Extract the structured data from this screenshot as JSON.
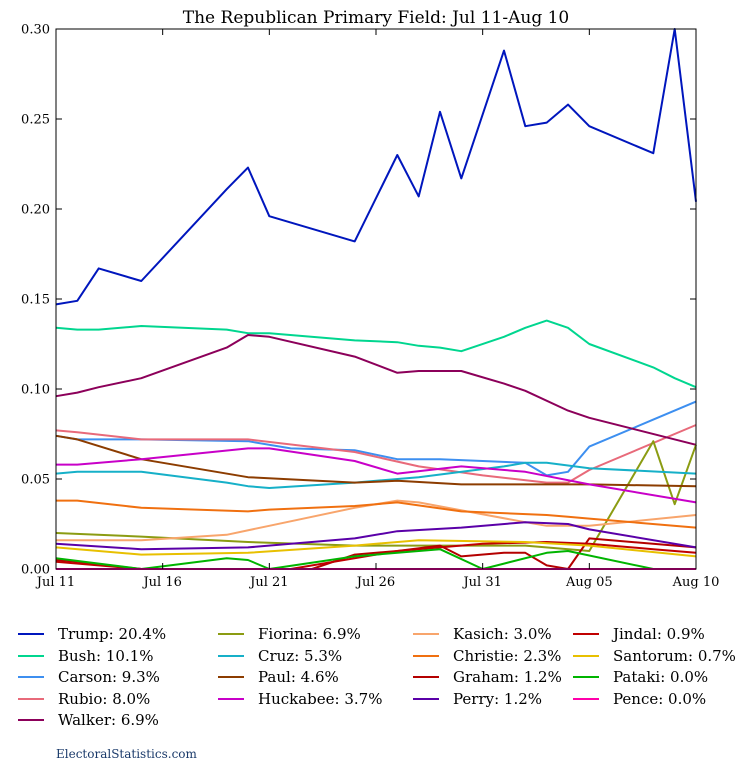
{
  "chart_data": {
    "type": "line",
    "title": "The Republican Primary Field: Jul 11-Aug 10",
    "xlabel": "",
    "ylabel": "",
    "x_range": [
      "2015-07-11",
      "2015-08-10"
    ],
    "ylim": [
      0,
      0.3
    ],
    "x_ticks": [
      "Jul 11",
      "Jul 16",
      "Jul 21",
      "Jul 26",
      "Jul 31",
      "Aug 05",
      "Aug 10"
    ],
    "x_tick_dates": [
      "2015-07-11",
      "2015-07-16",
      "2015-07-21",
      "2015-07-26",
      "2015-07-31",
      "2015-08-05",
      "2015-08-10"
    ],
    "y_ticks": [
      "0.00",
      "0.05",
      "0.10",
      "0.15",
      "0.20",
      "0.25",
      "0.30"
    ],
    "y_tick_values": [
      0,
      0.05,
      0.1,
      0.15,
      0.2,
      0.25,
      0.3
    ],
    "grid": false,
    "legend_position": "bottom",
    "series": [
      {
        "name": "Trump",
        "legend": "Trump: 20.4%",
        "color": "#0016bd",
        "points": [
          [
            "2015-07-11",
            0.147
          ],
          [
            "2015-07-12",
            0.149
          ],
          [
            "2015-07-13",
            0.167
          ],
          [
            "2015-07-15",
            0.16
          ],
          [
            "2015-07-19",
            0.211
          ],
          [
            "2015-07-20",
            0.223
          ],
          [
            "2015-07-21",
            0.196
          ],
          [
            "2015-07-25",
            0.182
          ],
          [
            "2015-07-27",
            0.23
          ],
          [
            "2015-07-28",
            0.207
          ],
          [
            "2015-07-29",
            0.254
          ],
          [
            "2015-07-30",
            0.217
          ],
          [
            "2015-08-01",
            0.288
          ],
          [
            "2015-08-02",
            0.246
          ],
          [
            "2015-08-03",
            0.248
          ],
          [
            "2015-08-04",
            0.258
          ],
          [
            "2015-08-05",
            0.246
          ],
          [
            "2015-08-08",
            0.231
          ],
          [
            "2015-08-09",
            0.3
          ],
          [
            "2015-08-10",
            0.204
          ]
        ]
      },
      {
        "name": "Bush",
        "legend": "Bush: 10.1%",
        "color": "#00d68f",
        "points": [
          [
            "2015-07-11",
            0.134
          ],
          [
            "2015-07-12",
            0.133
          ],
          [
            "2015-07-13",
            0.133
          ],
          [
            "2015-07-15",
            0.135
          ],
          [
            "2015-07-19",
            0.133
          ],
          [
            "2015-07-20",
            0.131
          ],
          [
            "2015-07-21",
            0.131
          ],
          [
            "2015-07-25",
            0.127
          ],
          [
            "2015-07-27",
            0.126
          ],
          [
            "2015-07-28",
            0.124
          ],
          [
            "2015-07-29",
            0.123
          ],
          [
            "2015-07-30",
            0.121
          ],
          [
            "2015-08-01",
            0.129
          ],
          [
            "2015-08-02",
            0.134
          ],
          [
            "2015-08-03",
            0.138
          ],
          [
            "2015-08-04",
            0.134
          ],
          [
            "2015-08-05",
            0.125
          ],
          [
            "2015-08-08",
            0.112
          ],
          [
            "2015-08-09",
            0.106
          ],
          [
            "2015-08-10",
            0.101
          ]
        ]
      },
      {
        "name": "Carson",
        "legend": "Carson: 9.3%",
        "color": "#3d8ff0",
        "points": [
          [
            "2015-07-11",
            0.074
          ],
          [
            "2015-07-12",
            0.072
          ],
          [
            "2015-07-15",
            0.072
          ],
          [
            "2015-07-20",
            0.071
          ],
          [
            "2015-07-22",
            0.067
          ],
          [
            "2015-07-25",
            0.066
          ],
          [
            "2015-07-27",
            0.061
          ],
          [
            "2015-07-29",
            0.061
          ],
          [
            "2015-07-31",
            0.06
          ],
          [
            "2015-08-02",
            0.059
          ],
          [
            "2015-08-03",
            0.052
          ],
          [
            "2015-08-04",
            0.054
          ],
          [
            "2015-08-05",
            0.068
          ],
          [
            "2015-08-08",
            0.083
          ],
          [
            "2015-08-10",
            0.093
          ]
        ]
      },
      {
        "name": "Rubio",
        "legend": "Rubio: 8.0%",
        "color": "#e86a7a",
        "points": [
          [
            "2015-07-11",
            0.077
          ],
          [
            "2015-07-12",
            0.076
          ],
          [
            "2015-07-15",
            0.072
          ],
          [
            "2015-07-20",
            0.072
          ],
          [
            "2015-07-25",
            0.065
          ],
          [
            "2015-07-28",
            0.057
          ],
          [
            "2015-07-31",
            0.052
          ],
          [
            "2015-08-03",
            0.048
          ],
          [
            "2015-08-04",
            0.048
          ],
          [
            "2015-08-05",
            0.055
          ],
          [
            "2015-08-10",
            0.08
          ]
        ]
      },
      {
        "name": "Walker",
        "legend": "Walker: 6.9%",
        "color": "#8c005a",
        "points": [
          [
            "2015-07-11",
            0.096
          ],
          [
            "2015-07-12",
            0.098
          ],
          [
            "2015-07-13",
            0.101
          ],
          [
            "2015-07-15",
            0.106
          ],
          [
            "2015-07-19",
            0.123
          ],
          [
            "2015-07-20",
            0.13
          ],
          [
            "2015-07-21",
            0.129
          ],
          [
            "2015-07-25",
            0.118
          ],
          [
            "2015-07-27",
            0.109
          ],
          [
            "2015-07-28",
            0.11
          ],
          [
            "2015-07-30",
            0.11
          ],
          [
            "2015-08-01",
            0.103
          ],
          [
            "2015-08-02",
            0.099
          ],
          [
            "2015-08-04",
            0.088
          ],
          [
            "2015-08-05",
            0.084
          ],
          [
            "2015-08-10",
            0.069
          ]
        ]
      },
      {
        "name": "Fiorina",
        "legend": "Fiorina: 6.9%",
        "color": "#8b9c12",
        "points": [
          [
            "2015-07-11",
            0.02
          ],
          [
            "2015-07-15",
            0.018
          ],
          [
            "2015-07-20",
            0.015
          ],
          [
            "2015-07-25",
            0.013
          ],
          [
            "2015-07-28",
            0.013
          ],
          [
            "2015-07-31",
            0.013
          ],
          [
            "2015-08-02",
            0.013
          ],
          [
            "2015-08-05",
            0.01
          ],
          [
            "2015-08-08",
            0.071
          ],
          [
            "2015-08-09",
            0.036
          ],
          [
            "2015-08-10",
            0.069
          ]
        ]
      },
      {
        "name": "Cruz",
        "legend": "Cruz: 5.3%",
        "color": "#16b0c8",
        "points": [
          [
            "2015-07-11",
            0.053
          ],
          [
            "2015-07-12",
            0.054
          ],
          [
            "2015-07-15",
            0.054
          ],
          [
            "2015-07-19",
            0.048
          ],
          [
            "2015-07-20",
            0.046
          ],
          [
            "2015-07-21",
            0.045
          ],
          [
            "2015-07-25",
            0.048
          ],
          [
            "2015-07-28",
            0.051
          ],
          [
            "2015-08-01",
            0.057
          ],
          [
            "2015-08-02",
            0.059
          ],
          [
            "2015-08-03",
            0.059
          ],
          [
            "2015-08-05",
            0.056
          ],
          [
            "2015-08-10",
            0.053
          ]
        ]
      },
      {
        "name": "Paul",
        "legend": "Paul: 4.6%",
        "color": "#8c3c00",
        "points": [
          [
            "2015-07-11",
            0.074
          ],
          [
            "2015-07-12",
            0.072
          ],
          [
            "2015-07-15",
            0.061
          ],
          [
            "2015-07-20",
            0.051
          ],
          [
            "2015-07-25",
            0.048
          ],
          [
            "2015-07-27",
            0.049
          ],
          [
            "2015-07-30",
            0.047
          ],
          [
            "2015-08-03",
            0.047
          ],
          [
            "2015-08-05",
            0.047
          ],
          [
            "2015-08-10",
            0.046
          ]
        ]
      },
      {
        "name": "Huckabee",
        "legend": "Huckabee: 3.7%",
        "color": "#c800c8",
        "points": [
          [
            "2015-07-11",
            0.058
          ],
          [
            "2015-07-12",
            0.058
          ],
          [
            "2015-07-15",
            0.061
          ],
          [
            "2015-07-20",
            0.067
          ],
          [
            "2015-07-21",
            0.067
          ],
          [
            "2015-07-25",
            0.06
          ],
          [
            "2015-07-27",
            0.053
          ],
          [
            "2015-07-30",
            0.057
          ],
          [
            "2015-08-02",
            0.054
          ],
          [
            "2015-08-05",
            0.047
          ],
          [
            "2015-08-10",
            0.037
          ]
        ]
      },
      {
        "name": "Kasich",
        "legend": "Kasich: 3.0%",
        "color": "#f8a56c",
        "points": [
          [
            "2015-07-11",
            0.016
          ],
          [
            "2015-07-15",
            0.016
          ],
          [
            "2015-07-19",
            0.019
          ],
          [
            "2015-07-21",
            0.024
          ],
          [
            "2015-07-25",
            0.034
          ],
          [
            "2015-07-27",
            0.038
          ],
          [
            "2015-07-28",
            0.037
          ],
          [
            "2015-08-02",
            0.026
          ],
          [
            "2015-08-03",
            0.024
          ],
          [
            "2015-08-05",
            0.024
          ],
          [
            "2015-08-10",
            0.03
          ]
        ]
      },
      {
        "name": "Christie",
        "legend": "Christie: 2.3%",
        "color": "#f07010",
        "points": [
          [
            "2015-07-11",
            0.038
          ],
          [
            "2015-07-12",
            0.038
          ],
          [
            "2015-07-15",
            0.034
          ],
          [
            "2015-07-20",
            0.032
          ],
          [
            "2015-07-21",
            0.033
          ],
          [
            "2015-07-25",
            0.035
          ],
          [
            "2015-07-27",
            0.037
          ],
          [
            "2015-07-30",
            0.032
          ],
          [
            "2015-08-03",
            0.03
          ],
          [
            "2015-08-04",
            0.029
          ],
          [
            "2015-08-05",
            0.028
          ],
          [
            "2015-08-10",
            0.023
          ]
        ]
      },
      {
        "name": "Graham",
        "legend": "Graham: 1.2%",
        "color": "#b40000",
        "points": [
          [
            "2015-07-11",
            0.005
          ],
          [
            "2015-07-12",
            0.004
          ],
          [
            "2015-07-15",
            0.0
          ],
          [
            "2015-07-23",
            0.0
          ],
          [
            "2015-07-25",
            0.008
          ],
          [
            "2015-07-27",
            0.01
          ],
          [
            "2015-07-29",
            0.013
          ],
          [
            "2015-07-30",
            0.007
          ],
          [
            "2015-08-01",
            0.009
          ],
          [
            "2015-08-02",
            0.009
          ],
          [
            "2015-08-03",
            0.002
          ],
          [
            "2015-08-04",
            0.0
          ],
          [
            "2015-08-05",
            0.017
          ],
          [
            "2015-08-10",
            0.012
          ]
        ]
      },
      {
        "name": "Perry",
        "legend": "Perry: 1.2%",
        "color": "#5a00a8",
        "points": [
          [
            "2015-07-11",
            0.014
          ],
          [
            "2015-07-15",
            0.011
          ],
          [
            "2015-07-20",
            0.012
          ],
          [
            "2015-07-25",
            0.017
          ],
          [
            "2015-07-27",
            0.021
          ],
          [
            "2015-07-30",
            0.023
          ],
          [
            "2015-08-02",
            0.026
          ],
          [
            "2015-08-04",
            0.025
          ],
          [
            "2015-08-05",
            0.022
          ],
          [
            "2015-08-10",
            0.012
          ]
        ]
      },
      {
        "name": "Jindal",
        "legend": "Jindal: 0.9%",
        "color": "#c00000",
        "points": [
          [
            "2015-07-11",
            0.004
          ],
          [
            "2015-07-15",
            0.0
          ],
          [
            "2015-07-22",
            0.0
          ],
          [
            "2015-07-27",
            0.01
          ],
          [
            "2015-07-29",
            0.012
          ],
          [
            "2015-07-31",
            0.014
          ],
          [
            "2015-08-03",
            0.015
          ],
          [
            "2015-08-05",
            0.014
          ],
          [
            "2015-08-08",
            0.011
          ],
          [
            "2015-08-10",
            0.009
          ]
        ]
      },
      {
        "name": "Santorum",
        "legend": "Santorum: 0.7%",
        "color": "#e8c000",
        "points": [
          [
            "2015-07-11",
            0.012
          ],
          [
            "2015-07-15",
            0.008
          ],
          [
            "2015-07-20",
            0.009
          ],
          [
            "2015-07-25",
            0.013
          ],
          [
            "2015-07-28",
            0.016
          ],
          [
            "2015-08-02",
            0.015
          ],
          [
            "2015-08-05",
            0.013
          ],
          [
            "2015-08-10",
            0.007
          ]
        ]
      },
      {
        "name": "Pataki",
        "legend": "Pataki: 0.0%",
        "color": "#00b400",
        "points": [
          [
            "2015-07-11",
            0.006
          ],
          [
            "2015-07-15",
            0.0
          ],
          [
            "2015-07-19",
            0.006
          ],
          [
            "2015-07-20",
            0.005
          ],
          [
            "2015-07-21",
            0.0
          ],
          [
            "2015-07-25",
            0.007
          ],
          [
            "2015-07-29",
            0.011
          ],
          [
            "2015-07-31",
            0.0
          ],
          [
            "2015-08-01",
            0.003
          ],
          [
            "2015-08-03",
            0.009
          ],
          [
            "2015-08-04",
            0.01
          ],
          [
            "2015-08-08",
            0.0
          ],
          [
            "2015-08-10",
            0.0
          ]
        ]
      },
      {
        "name": "Pence",
        "legend": "Pence: 0.0%",
        "color": "#ff00aa",
        "points": [
          [
            "2015-07-11",
            0.0
          ],
          [
            "2015-08-10",
            0.0
          ]
        ]
      }
    ]
  },
  "credit": "ElectoralStatistics.com"
}
